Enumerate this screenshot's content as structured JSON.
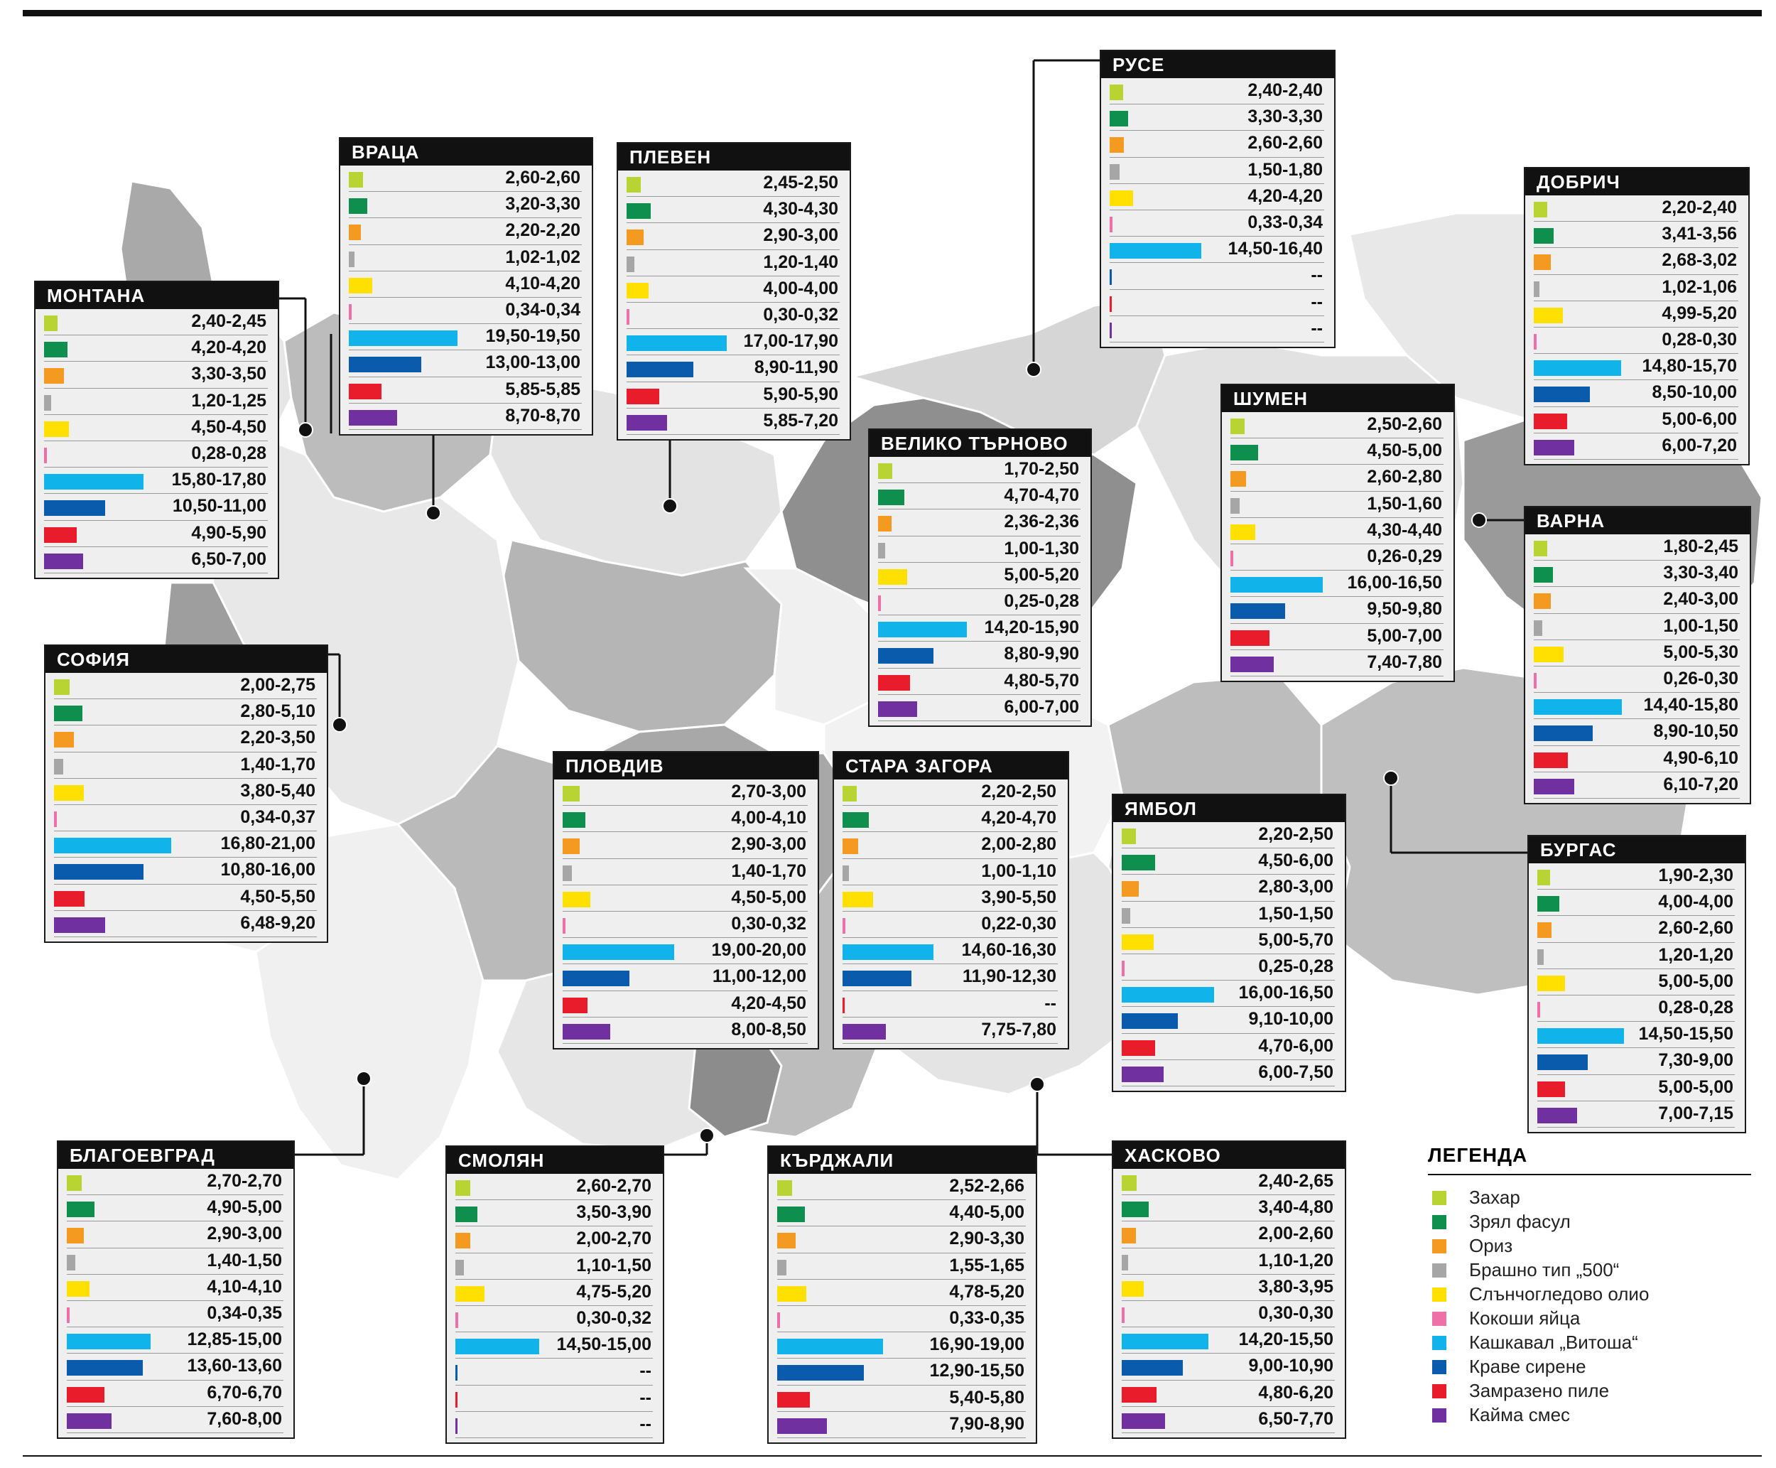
{
  "colors": {
    "zahar": "#b8d432",
    "fasul": "#0f8f4e",
    "oriz": "#f49a21",
    "brashno": "#a6a6a6",
    "olio": "#ffe000",
    "yaica": "#ef6fa8",
    "kashkaval": "#11b4ea",
    "sirene": "#0a5bab",
    "pile": "#e81c2a",
    "kaima": "#7030a0"
  },
  "legend": {
    "title": "ЛЕГЕНДА",
    "items": [
      "Захар",
      "Зрял фасул",
      "Ориз",
      "Брашно тип „500“",
      "Слънчогледово олио",
      "Кокоши яйца",
      "Кашкавал „Витоша“",
      "Краве сирене",
      "Замразено пиле",
      "Кайма смес"
    ]
  },
  "chart_data": {
    "type": "table",
    "title": "",
    "products": [
      "Захар",
      "Зрял фасул",
      "Ориз",
      "Брашно тип „500“",
      "Слънчогледово олио",
      "Кокоши яйца",
      "Кашкавал „Витоша“",
      "Краве сирене",
      "Замразено пиле",
      "Кайма смес"
    ],
    "regions": [
      {
        "name": "МОНТАНА",
        "ranges": [
          "2,40-2,45",
          "4,20-4,20",
          "3,30-3,50",
          "1,20-1,25",
          "4,50-4,50",
          "0,28-0,28",
          "15,80-17,80",
          "10,50-11,00",
          "4,90-5,90",
          "6,50-7,00"
        ],
        "max": [
          2.45,
          4.2,
          3.5,
          1.25,
          4.5,
          0.28,
          17.8,
          11.0,
          5.9,
          7.0
        ]
      },
      {
        "name": "ВРАЦА",
        "ranges": [
          "2,60-2,60",
          "3,20-3,30",
          "2,20-2,20",
          "1,02-1,02",
          "4,10-4,20",
          "0,34-0,34",
          "19,50-19,50",
          "13,00-13,00",
          "5,85-5,85",
          "8,70-8,70"
        ],
        "max": [
          2.6,
          3.3,
          2.2,
          1.02,
          4.2,
          0.34,
          19.5,
          13.0,
          5.85,
          8.7
        ]
      },
      {
        "name": "ПЛЕВЕН",
        "ranges": [
          "2,45-2,50",
          "4,30-4,30",
          "2,90-3,00",
          "1,20-1,40",
          "4,00-4,00",
          "0,30-0,32",
          "17,00-17,90",
          "8,90-11,90",
          "5,90-5,90",
          "5,85-7,20"
        ],
        "max": [
          2.5,
          4.3,
          3.0,
          1.4,
          4.0,
          0.32,
          17.9,
          11.9,
          5.9,
          7.2
        ]
      },
      {
        "name": "РУСЕ",
        "ranges": [
          "2,40-2,40",
          "3,30-3,30",
          "2,60-2,60",
          "1,50-1,80",
          "4,20-4,20",
          "0,33-0,34",
          "14,50-16,40",
          "--",
          "--",
          "--"
        ],
        "max": [
          2.4,
          3.3,
          2.6,
          1.8,
          4.2,
          0.34,
          16.4,
          0,
          0,
          0
        ]
      },
      {
        "name": "ДОБРИЧ",
        "ranges": [
          "2,20-2,40",
          "3,41-3,56",
          "2,68-3,02",
          "1,02-1,06",
          "4,99-5,20",
          "0,28-0,30",
          "14,80-15,70",
          "8,50-10,00",
          "5,00-6,00",
          "6,00-7,20"
        ],
        "max": [
          2.4,
          3.56,
          3.02,
          1.06,
          5.2,
          0.3,
          15.7,
          10.0,
          6.0,
          7.2
        ]
      },
      {
        "name": "ШУМЕН",
        "ranges": [
          "2,50-2,60",
          "4,50-5,00",
          "2,60-2,80",
          "1,50-1,60",
          "4,30-4,40",
          "0,26-0,29",
          "16,00-16,50",
          "9,50-9,80",
          "5,00-7,00",
          "7,40-7,80"
        ],
        "max": [
          2.6,
          5.0,
          2.8,
          1.6,
          4.4,
          0.29,
          16.5,
          9.8,
          7.0,
          7.8
        ]
      },
      {
        "name": "ВЕЛИКО ТЪРНОВО",
        "ranges": [
          "1,70-2,50",
          "4,70-4,70",
          "2,36-2,36",
          "1,00-1,30",
          "5,00-5,20",
          "0,25-0,28",
          "14,20-15,90",
          "8,80-9,90",
          "4,80-5,70",
          "6,00-7,00"
        ],
        "max": [
          2.5,
          4.7,
          2.36,
          1.3,
          5.2,
          0.28,
          15.9,
          9.9,
          5.7,
          7.0
        ]
      },
      {
        "name": "ВАРНА",
        "ranges": [
          "1,80-2,45",
          "3,30-3,40",
          "2,40-3,00",
          "1,00-1,50",
          "5,00-5,30",
          "0,26-0,30",
          "14,40-15,80",
          "8,90-10,50",
          "4,90-6,10",
          "6,10-7,20"
        ],
        "max": [
          2.45,
          3.4,
          3.0,
          1.5,
          5.3,
          0.3,
          15.8,
          10.5,
          6.1,
          7.2
        ]
      },
      {
        "name": "СОФИЯ",
        "ranges": [
          "2,00-2,75",
          "2,80-5,10",
          "2,20-3,50",
          "1,40-1,70",
          "3,80-5,40",
          "0,34-0,37",
          "16,80-21,00",
          "10,80-16,00",
          "4,50-5,50",
          "6,48-9,20"
        ],
        "max": [
          2.75,
          5.1,
          3.5,
          1.7,
          5.4,
          0.37,
          21.0,
          16.0,
          5.5,
          9.2
        ]
      },
      {
        "name": "ПЛОВДИВ",
        "ranges": [
          "2,70-3,00",
          "4,00-4,10",
          "2,90-3,00",
          "1,40-1,70",
          "4,50-5,00",
          "0,30-0,32",
          "19,00-20,00",
          "11,00-12,00",
          "4,20-4,50",
          "8,00-8,50"
        ],
        "max": [
          3.0,
          4.1,
          3.0,
          1.7,
          5.0,
          0.32,
          20.0,
          12.0,
          4.5,
          8.5
        ]
      },
      {
        "name": "СТАРА ЗАГОРА",
        "ranges": [
          "2,20-2,50",
          "4,20-4,70",
          "2,00-2,80",
          "1,00-1,10",
          "3,90-5,50",
          "0,22-0,30",
          "14,60-16,30",
          "11,90-12,30",
          "--",
          "7,75-7,80"
        ],
        "max": [
          2.5,
          4.7,
          2.8,
          1.1,
          5.5,
          0.3,
          16.3,
          12.3,
          0,
          7.8
        ]
      },
      {
        "name": "ЯМБОЛ",
        "ranges": [
          "2,20-2,50",
          "4,50-6,00",
          "2,80-3,00",
          "1,50-1,50",
          "5,00-5,70",
          "0,25-0,28",
          "16,00-16,50",
          "9,10-10,00",
          "4,70-6,00",
          "6,00-7,50"
        ],
        "max": [
          2.5,
          6.0,
          3.0,
          1.5,
          5.7,
          0.28,
          16.5,
          10.0,
          6.0,
          7.5
        ]
      },
      {
        "name": "БУРГАС",
        "ranges": [
          "1,90-2,30",
          "4,00-4,00",
          "2,60-2,60",
          "1,20-1,20",
          "5,00-5,00",
          "0,28-0,28",
          "14,50-15,50",
          "7,30-9,00",
          "5,00-5,00",
          "7,00-7,15"
        ],
        "max": [
          2.3,
          4.0,
          2.6,
          1.2,
          5.0,
          0.28,
          15.5,
          9.0,
          5.0,
          7.15
        ]
      },
      {
        "name": "БЛАГОЕВГРАД",
        "ranges": [
          "2,70-2,70",
          "4,90-5,00",
          "2,90-3,00",
          "1,40-1,50",
          "4,10-4,10",
          "0,34-0,35",
          "12,85-15,00",
          "13,60-13,60",
          "6,70-6,70",
          "7,60-8,00"
        ],
        "max": [
          2.7,
          5.0,
          3.0,
          1.5,
          4.1,
          0.35,
          15.0,
          13.6,
          6.7,
          8.0
        ]
      },
      {
        "name": "СМОЛЯН",
        "ranges": [
          "2,60-2,70",
          "3,50-3,90",
          "2,00-2,70",
          "1,10-1,50",
          "4,75-5,20",
          "0,30-0,32",
          "14,50-15,00",
          "--",
          "--",
          "--"
        ],
        "max": [
          2.7,
          3.9,
          2.7,
          1.5,
          5.2,
          0.32,
          15.0,
          0,
          0,
          0
        ]
      },
      {
        "name": "КЪРДЖАЛИ",
        "ranges": [
          "2,52-2,66",
          "4,40-5,00",
          "2,90-3,30",
          "1,55-1,65",
          "4,78-5,20",
          "0,33-0,35",
          "16,90-19,00",
          "12,90-15,50",
          "5,40-5,80",
          "7,90-8,90"
        ],
        "max": [
          2.66,
          5.0,
          3.3,
          1.65,
          5.2,
          0.35,
          19.0,
          15.5,
          5.8,
          8.9
        ]
      },
      {
        "name": "ХАСКОВО",
        "ranges": [
          "2,40-2,65",
          "3,40-4,80",
          "2,00-2,60",
          "1,10-1,20",
          "3,80-3,95",
          "0,30-0,30",
          "14,20-15,50",
          "9,00-10,90",
          "4,80-6,20",
          "6,50-7,70"
        ],
        "max": [
          2.65,
          4.8,
          2.6,
          1.2,
          3.95,
          0.3,
          15.5,
          10.9,
          6.2,
          7.7
        ]
      }
    ]
  }
}
